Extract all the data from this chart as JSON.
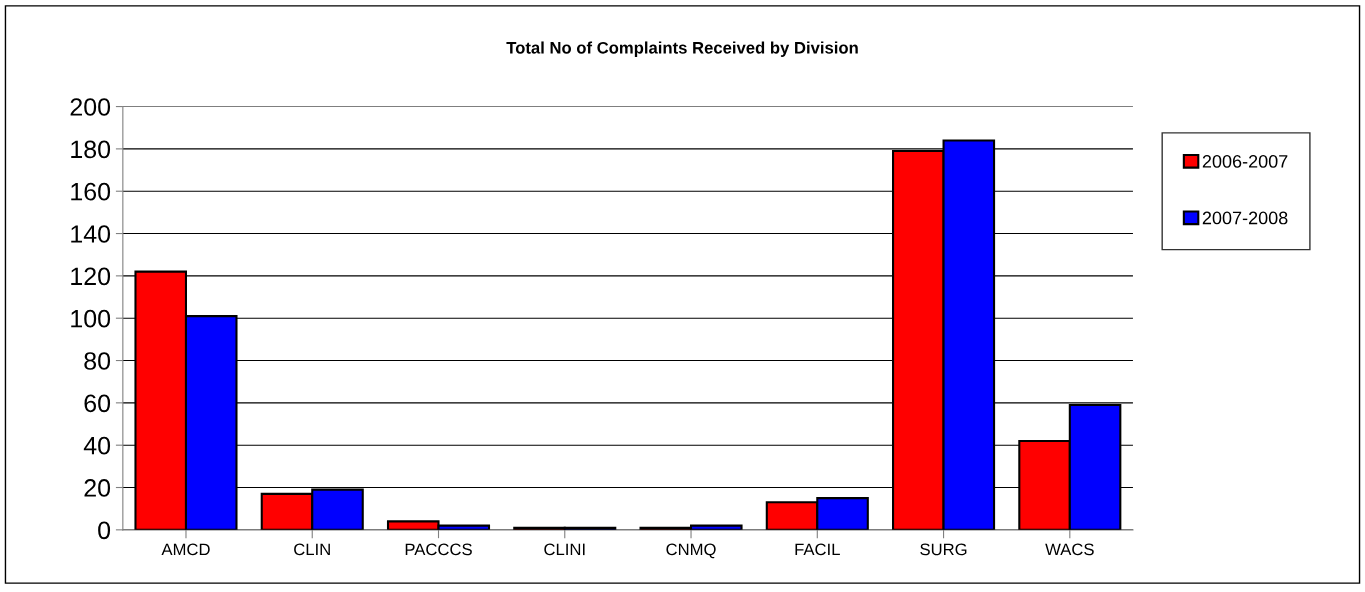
{
  "chart_data": {
    "type": "bar",
    "title": "Total No of Complaints Received by Division",
    "categories": [
      "AMCD",
      "CLIN",
      "PACCCS",
      "CLINI",
      "CNMQ",
      "FACIL",
      "SURG",
      "WACS"
    ],
    "series": [
      {
        "name": "2006-2007",
        "color": "#ff0000",
        "values": [
          122,
          17,
          4,
          1,
          1,
          13,
          179,
          42
        ]
      },
      {
        "name": "2007-2008",
        "color": "#0000ff",
        "values": [
          101,
          19,
          2,
          1,
          2,
          15,
          184,
          59
        ]
      }
    ],
    "ylim": [
      0,
      200
    ],
    "yticks": [
      0,
      20,
      40,
      60,
      80,
      100,
      120,
      140,
      160,
      180,
      200
    ],
    "grid": "y",
    "legend": "right"
  }
}
